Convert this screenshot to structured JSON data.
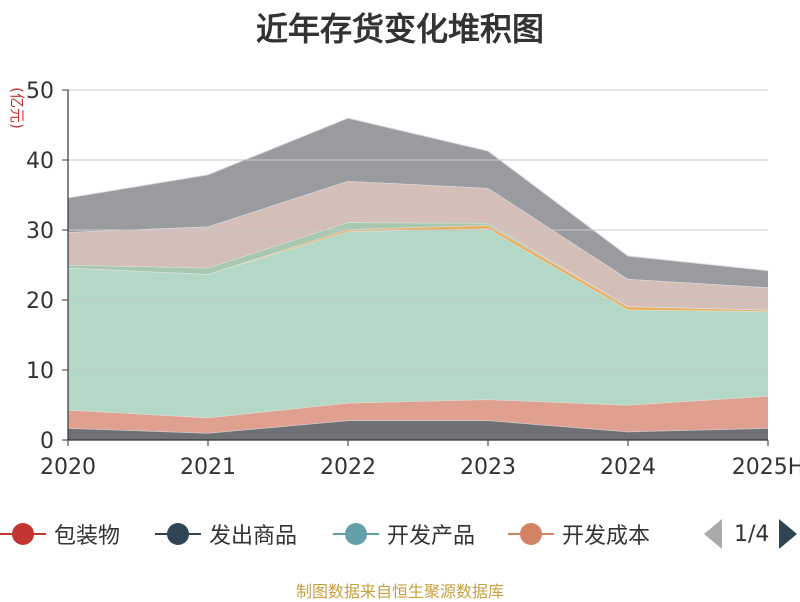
{
  "title": "近年存货变化堆积图",
  "source_text": "制图数据来自恒生聚源数据库",
  "pager": {
    "text": "1/4"
  },
  "legend": [
    {
      "label": "包装物",
      "color": "#c23531"
    },
    {
      "label": "发出商品",
      "color": "#2f4554"
    },
    {
      "label": "开发产品",
      "color": "#61a0a8"
    },
    {
      "label": "开发成本",
      "color": "#d48265"
    }
  ],
  "chart_data": {
    "type": "area",
    "stacked": true,
    "title": "近年存货变化堆积图",
    "ylabel": "(亿元)",
    "xlabel": "",
    "categories": [
      "2020",
      "2021",
      "2022",
      "2023",
      "2024",
      "2025H"
    ],
    "ylim": [
      0,
      50
    ],
    "yticks": [
      0,
      10,
      20,
      30,
      40,
      50
    ],
    "grid": true,
    "series": [
      {
        "values": [
          1.7,
          1.0,
          2.8,
          2.8,
          1.2,
          1.7
        ],
        "color": "#6e7074"
      },
      {
        "values": [
          2.6,
          2.2,
          2.5,
          3.0,
          3.8,
          4.6
        ],
        "color": "#e0a090"
      },
      {
        "values": [
          20.3,
          20.5,
          24.5,
          24.4,
          13.6,
          12.1
        ],
        "color": "#b3d8c5"
      },
      {
        "values": [
          0.0,
          0.0,
          0.3,
          0.5,
          0.5,
          0.2
        ],
        "color": "#e8b060"
      },
      {
        "values": [
          0.4,
          0.9,
          1.0,
          0.3,
          0.0,
          0.0
        ],
        "color": "#a8c8b0"
      },
      {
        "values": [
          4.7,
          5.9,
          5.9,
          5.0,
          3.9,
          3.2
        ],
        "color": "#d3beb8"
      },
      {
        "values": [
          4.9,
          7.4,
          9.0,
          5.3,
          3.3,
          2.4
        ],
        "color": "#9a9b9e"
      }
    ]
  }
}
